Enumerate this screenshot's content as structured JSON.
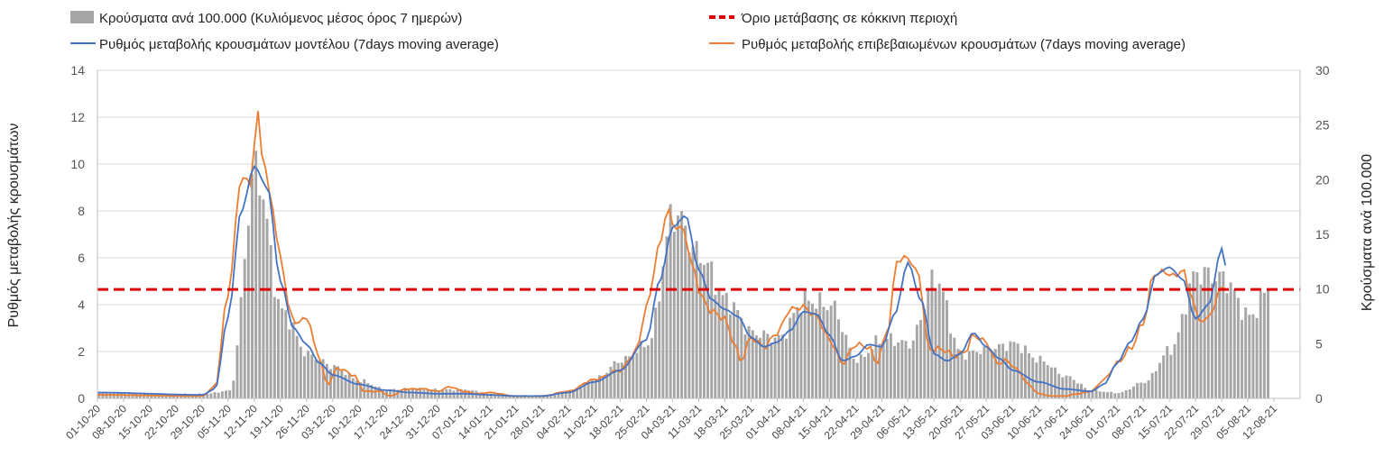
{
  "chart_data": {
    "type": "bar+line",
    "colors": {
      "bars": "#a6a6a6",
      "model_line": "#4472c4",
      "confirmed_line": "#ed7d31",
      "threshold": "#e00000",
      "grid": "#d9d9d9"
    },
    "legend": [
      {
        "label": "Κρούσματα ανά 100.000 (Κυλιόμενος μέσος όρος 7 ημερών)",
        "kind": "bar"
      },
      {
        "label": "Όριο μετάβασης σε κόκκινη περιοχή",
        "kind": "dashed"
      },
      {
        "label": "Ρυθμός μεταβολής κρουσμάτων μοντέλου (7days moving average)",
        "kind": "line-blue"
      },
      {
        "label": "Ρυθμός μεταβολής επιβεβαιωμένων κρουσμάτων (7days moving average)",
        "kind": "line-orange"
      }
    ],
    "y_left": {
      "label": "Ρυθμός μεταβολής κρουσμάτων",
      "min": 0,
      "max": 14,
      "ticks": [
        "0",
        "2",
        "4",
        "6",
        "8",
        "10",
        "12",
        "14"
      ]
    },
    "y_right": {
      "label": "Κρούσματα ανά 100.000",
      "min": 0,
      "max": 30,
      "ticks": [
        "0",
        "5",
        "10",
        "15",
        "20",
        "25",
        "30"
      ]
    },
    "x_labels": [
      "01-10-20",
      "08-10-20",
      "15-10-20",
      "22-10-20",
      "29-10-20",
      "05-11-20",
      "12-11-20",
      "19-11-20",
      "26-11-20",
      "03-12-20",
      "10-12-20",
      "17-12-20",
      "24-12-20",
      "31-12-20",
      "07-01-21",
      "14-01-21",
      "21-01-21",
      "28-01-21",
      "04-02-21",
      "11-02-21",
      "18-02-21",
      "25-02-21",
      "04-03-21",
      "11-03-21",
      "18-03-21",
      "25-03-21",
      "01-04-21",
      "08-04-21",
      "15-04-21",
      "22-04-21",
      "29-04-21",
      "06-05-21",
      "13-05-21",
      "20-05-21",
      "27-05-21",
      "03-06-21",
      "10-06-21",
      "17-06-21",
      "24-06-21",
      "01-07-21",
      "08-07-21",
      "15-07-21",
      "22-07-21",
      "29-07-21",
      "05-08-21",
      "12-08-21"
    ],
    "threshold_left": 4.65,
    "bars_right_keypoints": [
      [
        0,
        0.5
      ],
      [
        4,
        0.4
      ],
      [
        5,
        0.7
      ],
      [
        6,
        21
      ],
      [
        7,
        8
      ],
      [
        8,
        4
      ],
      [
        9,
        2.9
      ],
      [
        10,
        1.6
      ],
      [
        11,
        0.8
      ],
      [
        12,
        0.9
      ],
      [
        13,
        0.8
      ],
      [
        14,
        0.8
      ],
      [
        15,
        0.4
      ],
      [
        16,
        0.2
      ],
      [
        17,
        0.3
      ],
      [
        18,
        0.6
      ],
      [
        19,
        1.8
      ],
      [
        20,
        3.5
      ],
      [
        21,
        5
      ],
      [
        22,
        17
      ],
      [
        23,
        13
      ],
      [
        24,
        9
      ],
      [
        25,
        6
      ],
      [
        26,
        5.5
      ],
      [
        27,
        9
      ],
      [
        28,
        8.5
      ],
      [
        29,
        3.5
      ],
      [
        30,
        5.5
      ],
      [
        31,
        5
      ],
      [
        32,
        11
      ],
      [
        33,
        4
      ],
      [
        34,
        4.5
      ],
      [
        35,
        5
      ],
      [
        36,
        3.5
      ],
      [
        37,
        2
      ],
      [
        38,
        0.7
      ],
      [
        39,
        0.5
      ],
      [
        40,
        1.5
      ],
      [
        41,
        4.5
      ],
      [
        42,
        11.5
      ],
      [
        43,
        11
      ],
      [
        44,
        7.5
      ],
      [
        45,
        11
      ]
    ],
    "model_left_keypoints": [
      [
        0,
        0.25
      ],
      [
        4,
        0.15
      ],
      [
        4.5,
        0.4
      ],
      [
        5,
        3.5
      ],
      [
        5.5,
        8
      ],
      [
        6,
        9.9
      ],
      [
        6.5,
        9
      ],
      [
        7,
        5
      ],
      [
        7.5,
        3
      ],
      [
        8,
        2.3
      ],
      [
        8.5,
        1.5
      ],
      [
        9,
        1
      ],
      [
        10,
        0.6
      ],
      [
        11,
        0.35
      ],
      [
        12,
        0.25
      ],
      [
        13,
        0.2
      ],
      [
        14,
        0.2
      ],
      [
        15,
        0.15
      ],
      [
        16,
        0.1
      ],
      [
        17,
        0.1
      ],
      [
        18,
        0.25
      ],
      [
        19,
        0.7
      ],
      [
        20,
        1.2
      ],
      [
        21,
        2.5
      ],
      [
        21.5,
        5
      ],
      [
        22,
        7.3
      ],
      [
        22.5,
        7.8
      ],
      [
        23,
        5.5
      ],
      [
        23.5,
        4.2
      ],
      [
        24,
        3.8
      ],
      [
        24.5,
        3.5
      ],
      [
        25,
        2.6
      ],
      [
        25.5,
        2.2
      ],
      [
        26,
        2.4
      ],
      [
        26.5,
        2.9
      ],
      [
        27,
        3.7
      ],
      [
        27.5,
        3.6
      ],
      [
        28,
        2.7
      ],
      [
        28.5,
        1.6
      ],
      [
        29,
        1.8
      ],
      [
        29.5,
        2.3
      ],
      [
        30,
        2.2
      ],
      [
        30.5,
        3.6
      ],
      [
        31,
        5.8
      ],
      [
        31.5,
        4.2
      ],
      [
        32,
        1.9
      ],
      [
        32.5,
        1.6
      ],
      [
        33,
        1.9
      ],
      [
        33.5,
        2.8
      ],
      [
        34,
        2.2
      ],
      [
        34.5,
        1.7
      ],
      [
        35,
        1.2
      ],
      [
        36,
        0.7
      ],
      [
        37,
        0.4
      ],
      [
        38,
        0.3
      ],
      [
        38.5,
        0.6
      ],
      [
        39,
        1.5
      ],
      [
        39.5,
        2.4
      ],
      [
        40,
        3.4
      ],
      [
        40.5,
        5.3
      ],
      [
        41,
        5.6
      ],
      [
        41.5,
        5.1
      ],
      [
        42,
        3.4
      ],
      [
        42.5,
        4
      ],
      [
        43,
        6.4
      ],
      [
        43.2,
        5.5
      ]
    ],
    "confirmed_left_keypoints": [
      [
        0,
        0.15
      ],
      [
        4,
        0.1
      ],
      [
        4.5,
        0.5
      ],
      [
        5,
        4.5
      ],
      [
        5.5,
        9.4
      ],
      [
        5.9,
        9.2
      ],
      [
        6.1,
        12.4
      ],
      [
        6.3,
        10.5
      ],
      [
        6.6,
        8.7
      ],
      [
        7,
        6
      ],
      [
        7.4,
        3.5
      ],
      [
        7.7,
        3.2
      ],
      [
        8,
        3.5
      ],
      [
        8.4,
        2
      ],
      [
        8.8,
        0.6
      ],
      [
        9.2,
        1.3
      ],
      [
        9.8,
        1
      ],
      [
        10.2,
        0.3
      ],
      [
        10.8,
        0.3
      ],
      [
        11.2,
        0.1
      ],
      [
        11.8,
        0.4
      ],
      [
        12.5,
        0.4
      ],
      [
        13,
        0.3
      ],
      [
        13.5,
        0.5
      ],
      [
        14,
        0.3
      ],
      [
        14.5,
        0.2
      ],
      [
        15,
        0.25
      ],
      [
        16,
        0.1
      ],
      [
        17,
        0.1
      ],
      [
        18,
        0.3
      ],
      [
        19,
        0.8
      ],
      [
        20,
        1.2
      ],
      [
        20.6,
        2
      ],
      [
        21,
        3.9
      ],
      [
        21.5,
        6.5
      ],
      [
        21.8,
        8.1
      ],
      [
        22,
        7.4
      ],
      [
        22.4,
        7.2
      ],
      [
        22.8,
        5.5
      ],
      [
        23.1,
        4.3
      ],
      [
        23.5,
        3.7
      ],
      [
        24,
        3.4
      ],
      [
        24.3,
        2.5
      ],
      [
        24.6,
        1.6
      ],
      [
        25,
        2.6
      ],
      [
        25.5,
        2.2
      ],
      [
        26,
        2.8
      ],
      [
        26.5,
        3.8
      ],
      [
        27,
        3.9
      ],
      [
        27.5,
        3.5
      ],
      [
        28,
        2.5
      ],
      [
        28.5,
        1.5
      ],
      [
        29,
        2.3
      ],
      [
        29.5,
        2.2
      ],
      [
        29.8,
        1.5
      ],
      [
        30.2,
        2.8
      ],
      [
        30.6,
        5.9
      ],
      [
        31,
        6
      ],
      [
        31.4,
        5.3
      ],
      [
        31.8,
        2.1
      ],
      [
        32.3,
        2.1
      ],
      [
        32.8,
        1.8
      ],
      [
        33.2,
        2
      ],
      [
        33.5,
        2.7
      ],
      [
        34,
        2.4
      ],
      [
        34.4,
        1.5
      ],
      [
        34.8,
        1.6
      ],
      [
        35.2,
        1.2
      ],
      [
        35.6,
        0.6
      ],
      [
        36,
        0.2
      ],
      [
        36.5,
        0.1
      ],
      [
        37,
        0.1
      ],
      [
        37.5,
        0.2
      ],
      [
        38,
        0.3
      ],
      [
        38.5,
        0.8
      ],
      [
        39,
        1.5
      ],
      [
        39.5,
        2.1
      ],
      [
        40,
        3.2
      ],
      [
        40.4,
        5.3
      ],
      [
        40.8,
        5.4
      ],
      [
        41.2,
        5.2
      ],
      [
        41.5,
        5.5
      ],
      [
        41.8,
        4.5
      ],
      [
        42.1,
        3.4
      ],
      [
        42.4,
        3.3
      ],
      [
        42.7,
        3.9
      ],
      [
        43,
        4.8
      ],
      [
        43.2,
        4.7
      ]
    ]
  }
}
